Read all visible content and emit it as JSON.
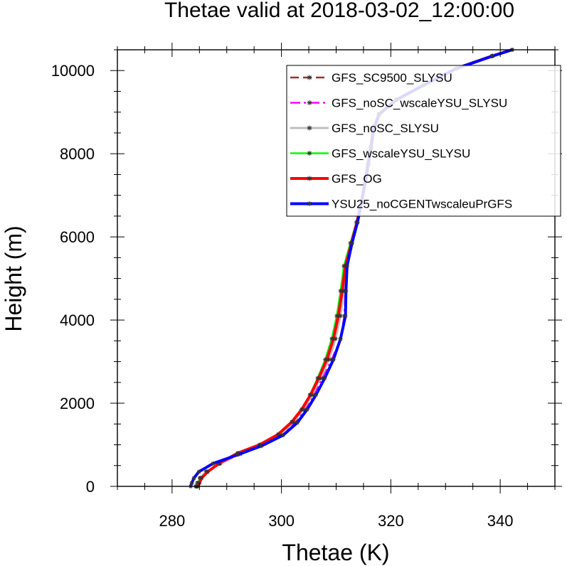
{
  "chart_data": {
    "type": "line",
    "title": "Thetae valid at 2018-03-02_12:00:00",
    "xlabel": "Thetae (K)",
    "ylabel": "Height (m)",
    "xlim": [
      270,
      350
    ],
    "ylim": [
      0,
      10500
    ],
    "xticks": [
      280,
      300,
      320,
      340
    ],
    "yticks": [
      0,
      2000,
      4000,
      6000,
      8000,
      10000
    ],
    "xtick_labels": [
      "280",
      "300",
      "320",
      "340"
    ],
    "ytick_labels": [
      "0",
      "2000",
      "4000",
      "6000",
      "8000",
      "10000"
    ],
    "legend_position": "top-right",
    "grid": false,
    "series": [
      {
        "name": "GFS_SC9500_SLYSU",
        "color": "#a52a2a",
        "dash": "dash",
        "points": [
          [
            284.6,
            0
          ],
          [
            284.9,
            80
          ],
          [
            285.3,
            200
          ],
          [
            286.3,
            350
          ],
          [
            288.5,
            550
          ],
          [
            292,
            800
          ],
          [
            296,
            1000
          ],
          [
            299.5,
            1250
          ],
          [
            302,
            1550
          ],
          [
            303.8,
            1850
          ],
          [
            305.3,
            2200
          ],
          [
            306.8,
            2600
          ],
          [
            308.3,
            3050
          ],
          [
            309.5,
            3550
          ],
          [
            310.5,
            4100
          ],
          [
            311.2,
            4700
          ],
          [
            311.8,
            5300
          ],
          [
            312.8,
            5850
          ],
          [
            313.8,
            6350
          ],
          [
            314.6,
            6850
          ],
          [
            315.3,
            7350
          ],
          [
            315.8,
            7750
          ],
          [
            316.3,
            8150
          ],
          [
            316.8,
            8600
          ],
          [
            317.8,
            8950
          ],
          [
            321,
            9300
          ],
          [
            326,
            9650
          ],
          [
            332,
            10050
          ],
          [
            338.5,
            10350
          ],
          [
            342.2,
            10500
          ]
        ]
      },
      {
        "name": "GFS_noSC_wscaleYSU_SLYSU",
        "color": "#ff00ff",
        "dash": "dashdot",
        "points": [
          [
            284.3,
            0
          ],
          [
            284.6,
            80
          ],
          [
            285.1,
            200
          ],
          [
            286.2,
            350
          ],
          [
            288.8,
            550
          ],
          [
            292.5,
            780
          ],
          [
            296.5,
            1000
          ],
          [
            300,
            1250
          ],
          [
            302.5,
            1550
          ],
          [
            304.3,
            1850
          ],
          [
            305.9,
            2200
          ],
          [
            307.5,
            2600
          ],
          [
            309.2,
            3050
          ],
          [
            310.8,
            3550
          ],
          [
            311.5,
            4100
          ],
          [
            311.7,
            4700
          ],
          [
            312,
            5300
          ],
          [
            312.9,
            5850
          ],
          [
            313.9,
            6350
          ],
          [
            314.7,
            6850
          ],
          [
            315.4,
            7350
          ],
          [
            315.9,
            7750
          ],
          [
            316.4,
            8150
          ],
          [
            316.9,
            8600
          ],
          [
            317.9,
            8950
          ],
          [
            321.1,
            9300
          ],
          [
            326,
            9650
          ],
          [
            332,
            10050
          ],
          [
            338.6,
            10350
          ],
          [
            342.2,
            10500
          ]
        ]
      },
      {
        "name": "GFS_noSC_SLYSU",
        "color": "#bebebe",
        "dash": "solid",
        "points": [
          [
            284.4,
            0
          ],
          [
            284.7,
            80
          ],
          [
            285.1,
            200
          ],
          [
            286.3,
            350
          ],
          [
            288.7,
            550
          ],
          [
            292.3,
            790
          ],
          [
            296.3,
            1000
          ],
          [
            299.8,
            1250
          ],
          [
            302.2,
            1550
          ],
          [
            304,
            1850
          ],
          [
            305.6,
            2200
          ],
          [
            307.1,
            2600
          ],
          [
            308.7,
            3050
          ],
          [
            309.9,
            3550
          ],
          [
            310.8,
            4100
          ],
          [
            311.4,
            4700
          ],
          [
            311.9,
            5300
          ],
          [
            312.9,
            5850
          ],
          [
            313.9,
            6350
          ],
          [
            314.7,
            6850
          ],
          [
            315.4,
            7350
          ],
          [
            315.9,
            7750
          ],
          [
            316.4,
            8150
          ],
          [
            316.9,
            8600
          ],
          [
            317.9,
            8950
          ],
          [
            321.1,
            9300
          ],
          [
            326,
            9650
          ],
          [
            332,
            10050
          ],
          [
            338.6,
            10350
          ],
          [
            342.2,
            10500
          ]
        ]
      },
      {
        "name": "GFS_wscaleYSU_SLYSU",
        "color": "#00ff00",
        "dash": "solid",
        "points": [
          [
            284.5,
            0
          ],
          [
            284.8,
            80
          ],
          [
            285.2,
            200
          ],
          [
            286.4,
            350
          ],
          [
            288.6,
            550
          ],
          [
            292.2,
            800
          ],
          [
            296.2,
            1000
          ],
          [
            299.6,
            1250
          ],
          [
            302,
            1550
          ],
          [
            303.7,
            1850
          ],
          [
            305.2,
            2200
          ],
          [
            306.6,
            2600
          ],
          [
            308,
            3050
          ],
          [
            309.2,
            3550
          ],
          [
            310.1,
            4100
          ],
          [
            310.8,
            4700
          ],
          [
            311.4,
            5300
          ],
          [
            312.6,
            5850
          ],
          [
            313.7,
            6350
          ],
          [
            314.6,
            6850
          ],
          [
            315.3,
            7350
          ],
          [
            315.8,
            7750
          ],
          [
            316.3,
            8150
          ],
          [
            316.8,
            8600
          ],
          [
            317.8,
            8950
          ],
          [
            321,
            9300
          ],
          [
            326,
            9650
          ],
          [
            332,
            10050
          ],
          [
            338.5,
            10350
          ],
          [
            342.2,
            10500
          ]
        ]
      },
      {
        "name": "GFS_OG",
        "color": "#ff0000",
        "dash": "solid",
        "points": [
          [
            284.7,
            0
          ],
          [
            285,
            80
          ],
          [
            285.4,
            200
          ],
          [
            286.5,
            350
          ],
          [
            288.6,
            550
          ],
          [
            292,
            800
          ],
          [
            296,
            1000
          ],
          [
            299.4,
            1250
          ],
          [
            301.9,
            1550
          ],
          [
            303.7,
            1850
          ],
          [
            305.3,
            2200
          ],
          [
            306.8,
            2600
          ],
          [
            308.3,
            3050
          ],
          [
            309.5,
            3550
          ],
          [
            310.4,
            4100
          ],
          [
            311.1,
            4700
          ],
          [
            311.7,
            5300
          ],
          [
            312.8,
            5850
          ],
          [
            313.8,
            6350
          ],
          [
            314.6,
            6850
          ],
          [
            315.3,
            7350
          ],
          [
            315.8,
            7750
          ],
          [
            316.3,
            8150
          ],
          [
            316.8,
            8600
          ],
          [
            317.8,
            8950
          ],
          [
            321,
            9300
          ],
          [
            326,
            9650
          ],
          [
            332,
            10050
          ],
          [
            338.5,
            10350
          ],
          [
            342.2,
            10500
          ]
        ]
      },
      {
        "name": "YSU25_noCGENTwscaleuPrGFS",
        "color": "#0000ff",
        "dash": "solid",
        "points": [
          [
            283.4,
            0
          ],
          [
            283.6,
            80
          ],
          [
            284,
            200
          ],
          [
            284.9,
            350
          ],
          [
            287.5,
            550
          ],
          [
            292,
            760
          ],
          [
            296.3,
            970
          ],
          [
            300.3,
            1230
          ],
          [
            302.9,
            1530
          ],
          [
            304.7,
            1850
          ],
          [
            306.3,
            2200
          ],
          [
            307.9,
            2600
          ],
          [
            309.5,
            3050
          ],
          [
            310.8,
            3550
          ],
          [
            311.7,
            4100
          ],
          [
            311.8,
            4700
          ],
          [
            312,
            5300
          ],
          [
            312.9,
            5850
          ],
          [
            313.9,
            6350
          ],
          [
            314.7,
            6850
          ],
          [
            315.4,
            7350
          ],
          [
            315.9,
            7750
          ],
          [
            316.4,
            8150
          ],
          [
            316.9,
            8600
          ],
          [
            317.9,
            8950
          ],
          [
            321.1,
            9300
          ],
          [
            326,
            9650
          ],
          [
            332,
            10050
          ],
          [
            338.6,
            10350
          ],
          [
            342.2,
            10500
          ]
        ]
      }
    ]
  }
}
